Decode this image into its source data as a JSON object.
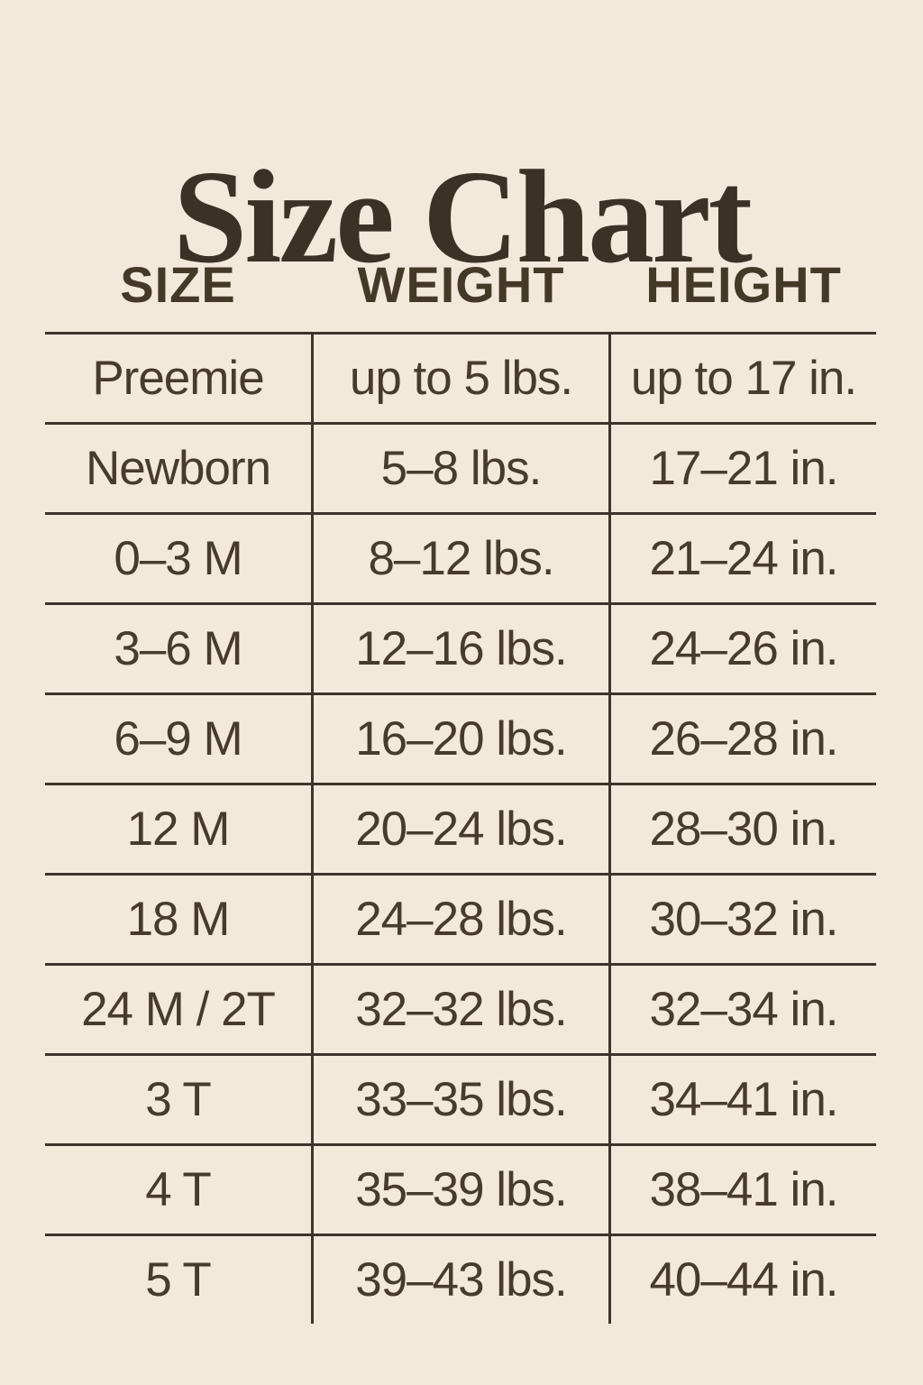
{
  "page": {
    "background_color": "#f2e9db",
    "ink_color": "#473b2c",
    "line_color": "#3e342a",
    "title_color": "#3b3226"
  },
  "title": "Size Chart",
  "table": {
    "columns": [
      "SIZE",
      "WEIGHT",
      "HEIGHT"
    ],
    "rows": [
      {
        "size": "Preemie",
        "weight": "up to 5 lbs.",
        "height": "up to 17 in."
      },
      {
        "size": "Newborn",
        "weight": "5–8 lbs.",
        "height": "17–21 in."
      },
      {
        "size": "0–3 M",
        "weight": "8–12 lbs.",
        "height": "21–24 in."
      },
      {
        "size": "3–6 M",
        "weight": "12–16 lbs.",
        "height": "24–26 in."
      },
      {
        "size": "6–9 M",
        "weight": "16–20 lbs.",
        "height": "26–28 in."
      },
      {
        "size": "12 M",
        "weight": "20–24 lbs.",
        "height": "28–30 in."
      },
      {
        "size": "18 M",
        "weight": "24–28 lbs.",
        "height": "30–32 in."
      },
      {
        "size": "24 M / 2T",
        "weight": "32–32 lbs.",
        "height": "32–34 in."
      },
      {
        "size": "3 T",
        "weight": "33–35 lbs.",
        "height": "34–41 in."
      },
      {
        "size": "4 T",
        "weight": "35–39 lbs.",
        "height": "38–41 in."
      },
      {
        "size": "5 T",
        "weight": "39–43 lbs.",
        "height": "40–44 in."
      }
    ]
  }
}
